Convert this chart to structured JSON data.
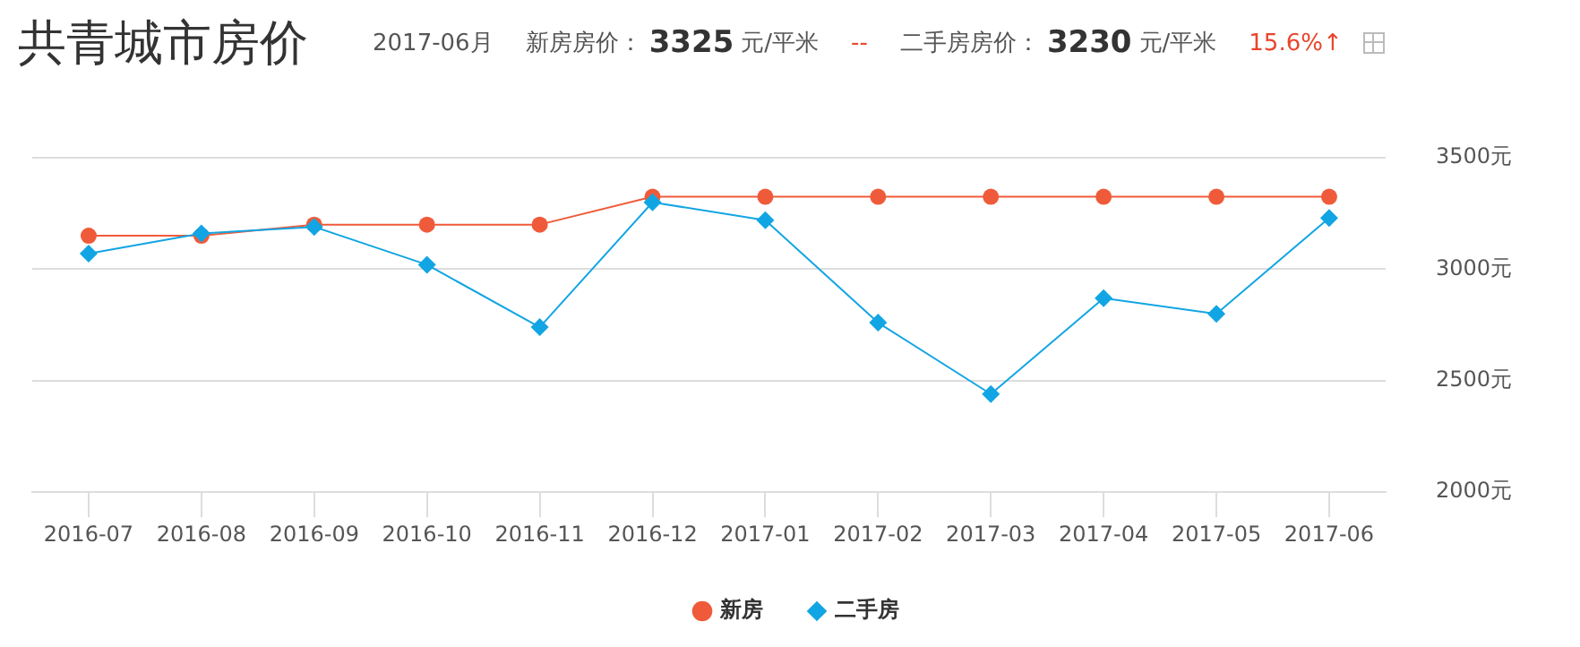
{
  "chart_data": {
    "type": "line",
    "title": "共青城市房价",
    "annotations": [
      "2017-06月",
      "新房房价：",
      "3325",
      "元/平米",
      "--",
      "二手房房价：",
      "3230",
      "元/平米",
      "15.6%↑"
    ],
    "categories": [
      "2016-07",
      "2016-08",
      "2016-09",
      "2016-10",
      "2016-11",
      "2016-12",
      "2017-01",
      "2017-02",
      "2017-03",
      "2017-04",
      "2017-05",
      "2017-06"
    ],
    "series": [
      {
        "name": "新房",
        "color": "#ef5b3a",
        "marker": "circle",
        "values": [
          3150,
          3150,
          3200,
          3200,
          3200,
          3325,
          3325,
          3325,
          3325,
          3325,
          3325,
          3325
        ]
      },
      {
        "name": "二手房",
        "color": "#12a5e3",
        "marker": "diamond",
        "values": [
          3070,
          3160,
          3190,
          3020,
          2740,
          3300,
          3220,
          2760,
          2440,
          2870,
          2800,
          3230
        ]
      }
    ],
    "ylim": [
      2000,
      3500
    ],
    "yticks": [
      {
        "value": 2000,
        "label": "2000元"
      },
      {
        "value": 2500,
        "label": "2500元"
      },
      {
        "value": 3000,
        "label": "3000元"
      },
      {
        "value": 3500,
        "label": "3500元"
      }
    ],
    "grid": "y",
    "legend": "bottom"
  }
}
